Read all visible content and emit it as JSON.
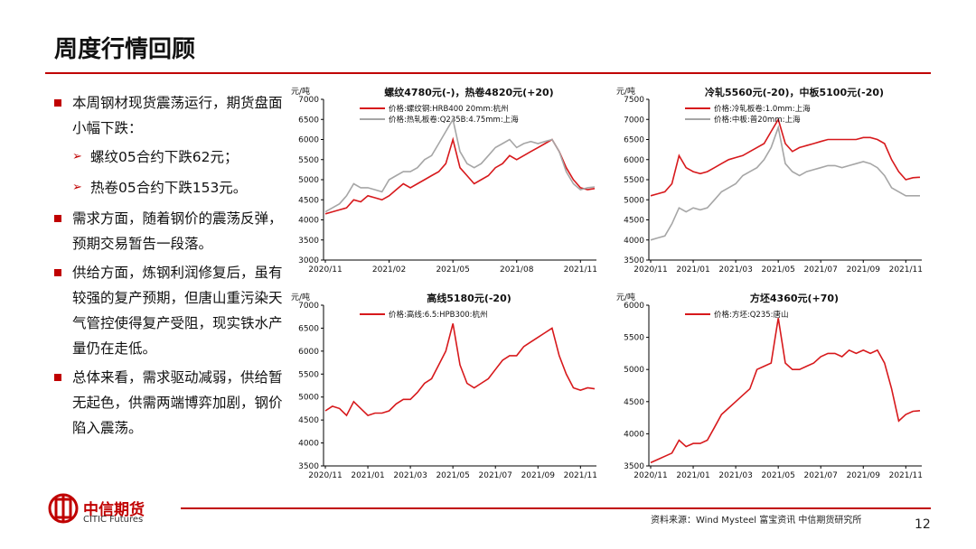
{
  "header": {
    "title": "周度行情回顾"
  },
  "bullets": [
    {
      "text": "本周钢材现货震荡运行，期货盘面小幅下跌：",
      "subs": [
        "螺纹05合约下跌62元；",
        "热卷05合约下跌153元。"
      ]
    },
    {
      "text": "需求方面，随着钢价的震荡反弹，预期交易暂告一段落。"
    },
    {
      "text": "供给方面，炼钢利润修复后，虽有较强的复产预期，但唐山重污染天气管控使得复产受阻，现实铁水产量仍在走低。"
    },
    {
      "text": "总体来看，需求驱动减弱，供给暂无起色，供需两端博弈加剧，钢价陷入震荡。"
    }
  ],
  "footer": {
    "brand": "中信期货",
    "brand_en": "CITIC Futures",
    "source": "资料来源：Wind Mysteel 富宝资讯 中信期货研究所",
    "page": "12"
  },
  "chart_data": [
    {
      "type": "line",
      "title": "螺纹4780元(-)，热卷4820元(+20)",
      "y_label": "元/吨",
      "categories": [
        "2020/11",
        null,
        null,
        null,
        null,
        null,
        null,
        null,
        null,
        "2021/02",
        null,
        null,
        null,
        null,
        null,
        null,
        null,
        null,
        "2021/05",
        null,
        null,
        null,
        null,
        null,
        null,
        null,
        null,
        "2021/08",
        null,
        null,
        null,
        null,
        null,
        null,
        null,
        null,
        "2021/11",
        null,
        null
      ],
      "series": [
        {
          "name": "价格:螺纹钢:HRB400 20mm:杭州",
          "color": "#d7191c",
          "values": [
            4150,
            4200,
            4250,
            4300,
            4500,
            4450,
            4600,
            4550,
            4500,
            4600,
            4750,
            4900,
            4800,
            4900,
            5000,
            5100,
            5200,
            5400,
            6000,
            5300,
            5100,
            4900,
            5000,
            5100,
            5300,
            5400,
            5600,
            5500,
            5600,
            5700,
            5800,
            5900,
            6000,
            5700,
            5300,
            5000,
            4800,
            4750,
            4780
          ]
        },
        {
          "name": "价格:热轧板卷:Q235B:4.75mm:上海",
          "color": "#a6a6a6",
          "values": [
            4200,
            4300,
            4400,
            4600,
            4900,
            4800,
            4800,
            4750,
            4700,
            5000,
            5100,
            5200,
            5200,
            5300,
            5500,
            5600,
            5900,
            6200,
            6500,
            5700,
            5400,
            5300,
            5400,
            5600,
            5800,
            5900,
            6000,
            5800,
            5900,
            5950,
            5900,
            5950,
            6000,
            5700,
            5200,
            4900,
            4750,
            4800,
            4820
          ]
        }
      ],
      "ylim": [
        3000,
        7000
      ],
      "yticks": [
        3000,
        3500,
        4000,
        4500,
        5000,
        5500,
        6000,
        6500,
        7000
      ]
    },
    {
      "type": "line",
      "title": "冷轧5560元(-20)，中板5100元(-20)",
      "y_label": "元/吨",
      "categories": [
        "2020/11",
        null,
        null,
        null,
        null,
        null,
        "2021/01",
        null,
        null,
        null,
        null,
        null,
        "2021/03",
        null,
        null,
        null,
        null,
        null,
        "2021/05",
        null,
        null,
        null,
        null,
        null,
        "2021/07",
        null,
        null,
        null,
        null,
        null,
        "2021/09",
        null,
        null,
        null,
        null,
        null,
        "2021/11",
        null,
        null
      ],
      "series": [
        {
          "name": "价格:冷轧板卷:1.0mm:上海",
          "color": "#d7191c",
          "values": [
            5100,
            5150,
            5200,
            5400,
            6100,
            5800,
            5700,
            5650,
            5700,
            5800,
            5900,
            6000,
            6050,
            6100,
            6200,
            6300,
            6400,
            6700,
            7000,
            6400,
            6200,
            6300,
            6350,
            6400,
            6450,
            6500,
            6500,
            6500,
            6500,
            6500,
            6550,
            6550,
            6500,
            6400,
            6000,
            5700,
            5500,
            5550,
            5560
          ]
        },
        {
          "name": "价格:中板:普20mm:上海",
          "color": "#a6a6a6",
          "values": [
            4000,
            4050,
            4100,
            4400,
            4800,
            4700,
            4800,
            4750,
            4800,
            5000,
            5200,
            5300,
            5400,
            5600,
            5700,
            5800,
            6000,
            6300,
            6800,
            5900,
            5700,
            5600,
            5700,
            5750,
            5800,
            5850,
            5850,
            5800,
            5850,
            5900,
            5950,
            5900,
            5800,
            5600,
            5300,
            5200,
            5100,
            5100,
            5100
          ]
        }
      ],
      "ylim": [
        3500,
        7500
      ],
      "yticks": [
        3500,
        4000,
        4500,
        5000,
        5500,
        6000,
        6500,
        7000,
        7500
      ]
    },
    {
      "type": "line",
      "title": "高线5180元(-20)",
      "y_label": "元/吨",
      "categories": [
        "2020/11",
        null,
        null,
        null,
        null,
        null,
        "2021/01",
        null,
        null,
        null,
        null,
        null,
        "2021/03",
        null,
        null,
        null,
        null,
        null,
        "2021/05",
        null,
        null,
        null,
        null,
        null,
        "2021/07",
        null,
        null,
        null,
        null,
        null,
        "2021/09",
        null,
        null,
        null,
        null,
        null,
        "2021/11",
        null,
        null
      ],
      "series": [
        {
          "name": "价格:高线:6.5:HPB300:杭州",
          "color": "#d7191c",
          "values": [
            4700,
            4800,
            4750,
            4600,
            4900,
            4750,
            4600,
            4650,
            4650,
            4700,
            4850,
            4950,
            4950,
            5100,
            5300,
            5400,
            5700,
            6000,
            6600,
            5700,
            5300,
            5200,
            5300,
            5400,
            5600,
            5800,
            5900,
            5900,
            6100,
            6200,
            6300,
            6400,
            6500,
            5900,
            5500,
            5200,
            5150,
            5200,
            5180
          ]
        }
      ],
      "ylim": [
        3500,
        7000
      ],
      "yticks": [
        3500,
        4000,
        4500,
        5000,
        5500,
        6000,
        6500,
        7000
      ]
    },
    {
      "type": "line",
      "title": "方坯4360元(+70)",
      "y_label": "元/吨",
      "categories": [
        "2020/11",
        null,
        null,
        null,
        null,
        null,
        "2021/01",
        null,
        null,
        null,
        null,
        null,
        "2021/03",
        null,
        null,
        null,
        null,
        null,
        "2021/05",
        null,
        null,
        null,
        null,
        null,
        "2021/07",
        null,
        null,
        null,
        null,
        null,
        "2021/09",
        null,
        null,
        null,
        null,
        null,
        "2021/11",
        null,
        null
      ],
      "series": [
        {
          "name": "价格:方坯:Q235:唐山",
          "color": "#d7191c",
          "values": [
            3550,
            3600,
            3650,
            3700,
            3900,
            3800,
            3850,
            3850,
            3900,
            4100,
            4300,
            4400,
            4500,
            4600,
            4700,
            5000,
            5050,
            5100,
            5800,
            5100,
            5000,
            5000,
            5050,
            5100,
            5200,
            5250,
            5250,
            5200,
            5300,
            5250,
            5300,
            5250,
            5300,
            5100,
            4700,
            4200,
            4300,
            4350,
            4360
          ]
        }
      ],
      "ylim": [
        3500,
        6000
      ],
      "yticks": [
        3500,
        4000,
        4500,
        5000,
        5500,
        6000
      ]
    }
  ]
}
